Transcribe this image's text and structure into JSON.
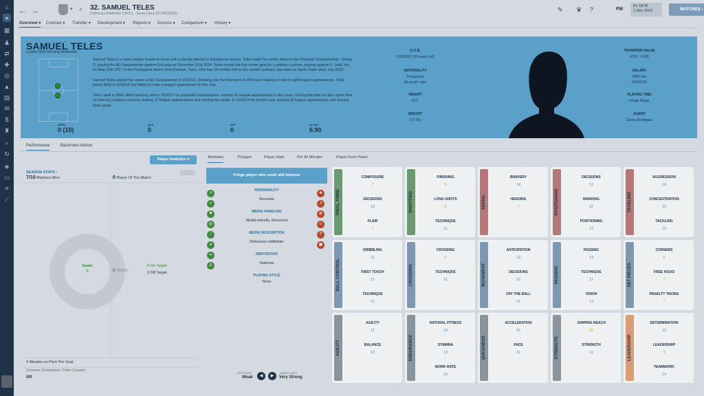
{
  "header": {
    "player_number_name": "32. SAMUEL TELES",
    "subtitle": "Defensive Midfielder (18/21) - Santa Clara (ID:00000000)",
    "game_label": "FM",
    "date_day": "Fri 18:30",
    "date": "1 Dec 2023",
    "matches_button": "MATCHES"
  },
  "tabs": [
    "Overview",
    "Contract",
    "Transfer",
    "Development",
    "Reports",
    "Discuss",
    "Comparison",
    "History"
  ],
  "profile": {
    "name": "SAMUEL TELES",
    "role": "Leader Ball Winning Midfielder",
    "bio": [
      "Samuel Teles is a name mainly known to those with a strong interest in Portuguese soccer. Teles made his senior debut in the Portugal Championship - Group D, playing for AD Sanjoanense against Gouveia on December 21st 2014. Teles scored his first senior goal for Lusitânia Lourosa, playing against S. João Ver on May 15th 2017 in the Portuguese Aveiro First Division. Teles, who has 16 months left on his current contract, has been at Santa Clara since July 2023.",
      "Samuel Teles started his career at AD Sanjoanense in 2012/13, breaking into the first-team in 2014 and making a total of eight league appearances. Teles joined BRG in 2016/16 but failed to make a league appearance for the club.",
      "Teles' spell at BRG didn't last long and in 2016/17 he joined AD Sanjoanense, making 26 league appearances in two years. During this time he also spent time on loan at Lusitânia Lourosa, making 17 league appearances and scoring two goals. In 2018/19 he joined Leça, making 50 league appearances and scoring three goals."
    ],
    "stats": [
      {
        "label": "APPS",
        "value": "0 (10)"
      },
      {
        "label": "GLS",
        "value": "0"
      },
      {
        "label": "AST",
        "value": "0"
      },
      {
        "label": "AV RAT",
        "value": "6.90"
      }
    ],
    "dob_label": "D.O.B.",
    "dob_value": "2/28/1997 (26 years old)",
    "nationality_label": "NATIONALITY",
    "nationality_value": "Portuguese",
    "nationality_sub": "No youth caps",
    "height_label": "HEIGHT",
    "height_value": "5'11\"",
    "weight_label": "WEIGHT",
    "weight_value": "171 lbs",
    "transfer_label": "TRANSFER VALUE",
    "transfer_value": "475K - 612K",
    "salary_label": "SALARY",
    "salary_value": "€900 p/w",
    "salary_sub": "6/30/2025",
    "playing_time_label": "PLAYING TIME",
    "playing_time_value": "Fringe Player",
    "agent_label": "AGENT",
    "agent_value": "Carlos Rodrigues"
  },
  "subtabs": [
    "Performance",
    "Backroom Advice"
  ],
  "analytics_button": "Player Analytics",
  "analytics_tabs": [
    "Attributes",
    "Polygon",
    "Player Stats",
    "Per 90 Minutes",
    "Player Form Panel"
  ],
  "season": {
    "title": "SEASON STATS",
    "matches_won_value": "7/10",
    "matches_won_label": "Matches Won",
    "potm_value": "0",
    "potm_label": "Player Of The Match",
    "goals_label": "Goals",
    "goals_value": "0",
    "shots_value": "0",
    "shots_label": "Shots",
    "on_target_value": "0",
    "on_target_label": "On Target",
    "off_target_value": "0",
    "off_target_label": "Off Target",
    "minutes_value": "0",
    "minutes_label": "Minutes on Pitch Per Goal",
    "crosses_label": "Crosses Completed / Total Crosses",
    "crosses_value": "0/0",
    "crosses_fraction": 0
  },
  "character": {
    "banner": "Fringe player who could still improve",
    "personality_label": "PERSONALITY",
    "personality_value": "Resolute",
    "media_label": "MEDIA HANDLING",
    "media_value": "Media-friendly, Reserved",
    "media_desc_label": "MEDIA DESCRIPTION",
    "media_desc_value": "Defensive midfielder",
    "reputation_label": "REPUTATION",
    "reputation_value": "National",
    "style_label": "PLAYING STYLE",
    "style_value": "None",
    "left_foot_label": "LEFT FOOT",
    "left_foot_value": "Weak",
    "right_foot_label": "RIGHT FOOT",
    "right_foot_value": "Very Strong"
  },
  "attribute_groups": [
    {
      "name": "FINAL THIRD",
      "color": "#6a9a6e",
      "attrs": [
        [
          "COMPOSURE",
          "7"
        ],
        [
          "DECISIONS",
          "13"
        ],
        [
          "FLAIR",
          "7"
        ]
      ]
    },
    {
      "name": "SHOOTING",
      "color": "#6a9a6e",
      "attrs": [
        [
          "FINISHING",
          "6"
        ],
        [
          "LONG SHOTS",
          "9"
        ],
        [
          "TECHNIQUE",
          "11"
        ]
      ]
    },
    {
      "name": "AERIAL",
      "color": "#b57878",
      "attrs": [
        [
          "BRAVERY",
          "14"
        ],
        [
          "HEADING",
          "7"
        ]
      ]
    },
    {
      "name": "POSITIONING",
      "color": "#b57878",
      "attrs": [
        [
          "DECISIONS",
          "13"
        ],
        [
          "MARKING",
          "12"
        ],
        [
          "POSITIONING",
          "13"
        ]
      ]
    },
    {
      "name": "TACKLING",
      "color": "#b57878",
      "attrs": [
        [
          "AGGRESSION",
          "14"
        ],
        [
          "CONCENTRATION",
          "13"
        ],
        [
          "TACKLING",
          "13"
        ]
      ]
    },
    {
      "name": "BALL CONTROL",
      "color": "#7f98b2",
      "attrs": [
        [
          "DRIBBLING",
          "11"
        ],
        [
          "FIRST TOUCH",
          "11"
        ],
        [
          "TECHNIQUE",
          "11"
        ]
      ]
    },
    {
      "name": "CROSSING",
      "color": "#7f98b2",
      "attrs": [
        [
          "CROSSING",
          "6"
        ],
        [
          "TECHNIQUE",
          "11"
        ]
      ]
    },
    {
      "name": "MOVEMENT",
      "color": "#7f98b2",
      "attrs": [
        [
          "ANTICIPATION",
          "13"
        ],
        [
          "DECISIONS",
          "13"
        ],
        [
          "OFF THE BALL",
          "11"
        ]
      ]
    },
    {
      "name": "PASSING",
      "color": "#7f98b2",
      "attrs": [
        [
          "PASSING",
          "13"
        ],
        [
          "TECHNIQUE",
          "11"
        ],
        [
          "VISION",
          "13"
        ]
      ]
    },
    {
      "name": "SET PIECES",
      "color": "#7f98b2",
      "attrs": [
        [
          "CORNERS",
          "6"
        ],
        [
          "FREE KICKS",
          "7"
        ],
        [
          "PENALTY TAKING",
          "7"
        ]
      ]
    },
    {
      "name": "AGILITY",
      "color": "#8a949c",
      "attrs": [
        [
          "AGILITY",
          "11"
        ],
        [
          "BALANCE",
          "12"
        ]
      ]
    },
    {
      "name": "ENDURANCE",
      "color": "#8a949c",
      "attrs": [
        [
          "NATURAL FITNESS",
          "13"
        ],
        [
          "STAMINA",
          "13"
        ],
        [
          "WORK RATE",
          "14"
        ]
      ]
    },
    {
      "name": "QUICKNESS",
      "color": "#8a949c",
      "attrs": [
        [
          "ACCELERATION",
          "12"
        ],
        [
          "PACE",
          "11"
        ]
      ]
    },
    {
      "name": "STRENGTH",
      "color": "#8a949c",
      "attrs": [
        [
          "JUMPING REACH",
          "10"
        ],
        [
          "STRENGTH",
          "11"
        ]
      ]
    },
    {
      "name": "LEADERSHIP",
      "color": "#d99c74",
      "attrs": [
        [
          "DETERMINATION",
          "15"
        ],
        [
          "LEADERSHIP",
          "9"
        ],
        [
          "TEAMWORK",
          "14"
        ]
      ]
    }
  ]
}
